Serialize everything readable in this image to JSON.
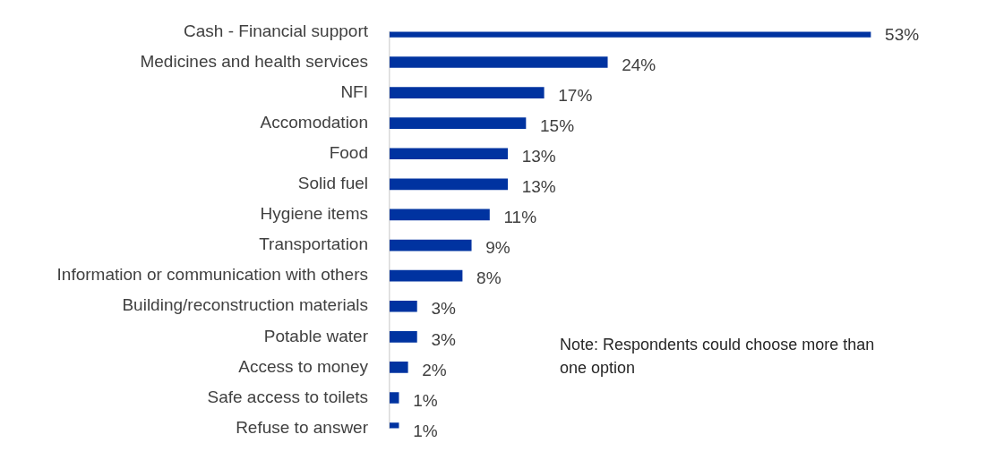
{
  "chart_data": {
    "type": "bar",
    "orientation": "horizontal",
    "categories": [
      "Cash - Financial support",
      "Medicines and health services",
      "NFI",
      "Accomodation",
      "Food",
      "Solid fuel",
      "Hygiene items",
      "Transportation",
      "Information or communication with others",
      "Building/reconstruction materials",
      "Potable water",
      "Access to money",
      "Safe access to toilets",
      "Refuse to answer"
    ],
    "values": [
      53,
      24,
      17,
      15,
      13,
      13,
      11,
      9,
      8,
      3,
      3,
      2,
      1,
      1
    ],
    "value_labels": [
      "53%",
      "24%",
      "17%",
      "15%",
      "13%",
      "13%",
      "11%",
      "9%",
      "8%",
      "3%",
      "3%",
      "2%",
      "1%",
      "1%"
    ],
    "color": "#0033a0",
    "tick_labels": "y",
    "grid": false,
    "legend": false,
    "annotations": [
      "Note: Respondents could choose more than one option"
    ]
  }
}
